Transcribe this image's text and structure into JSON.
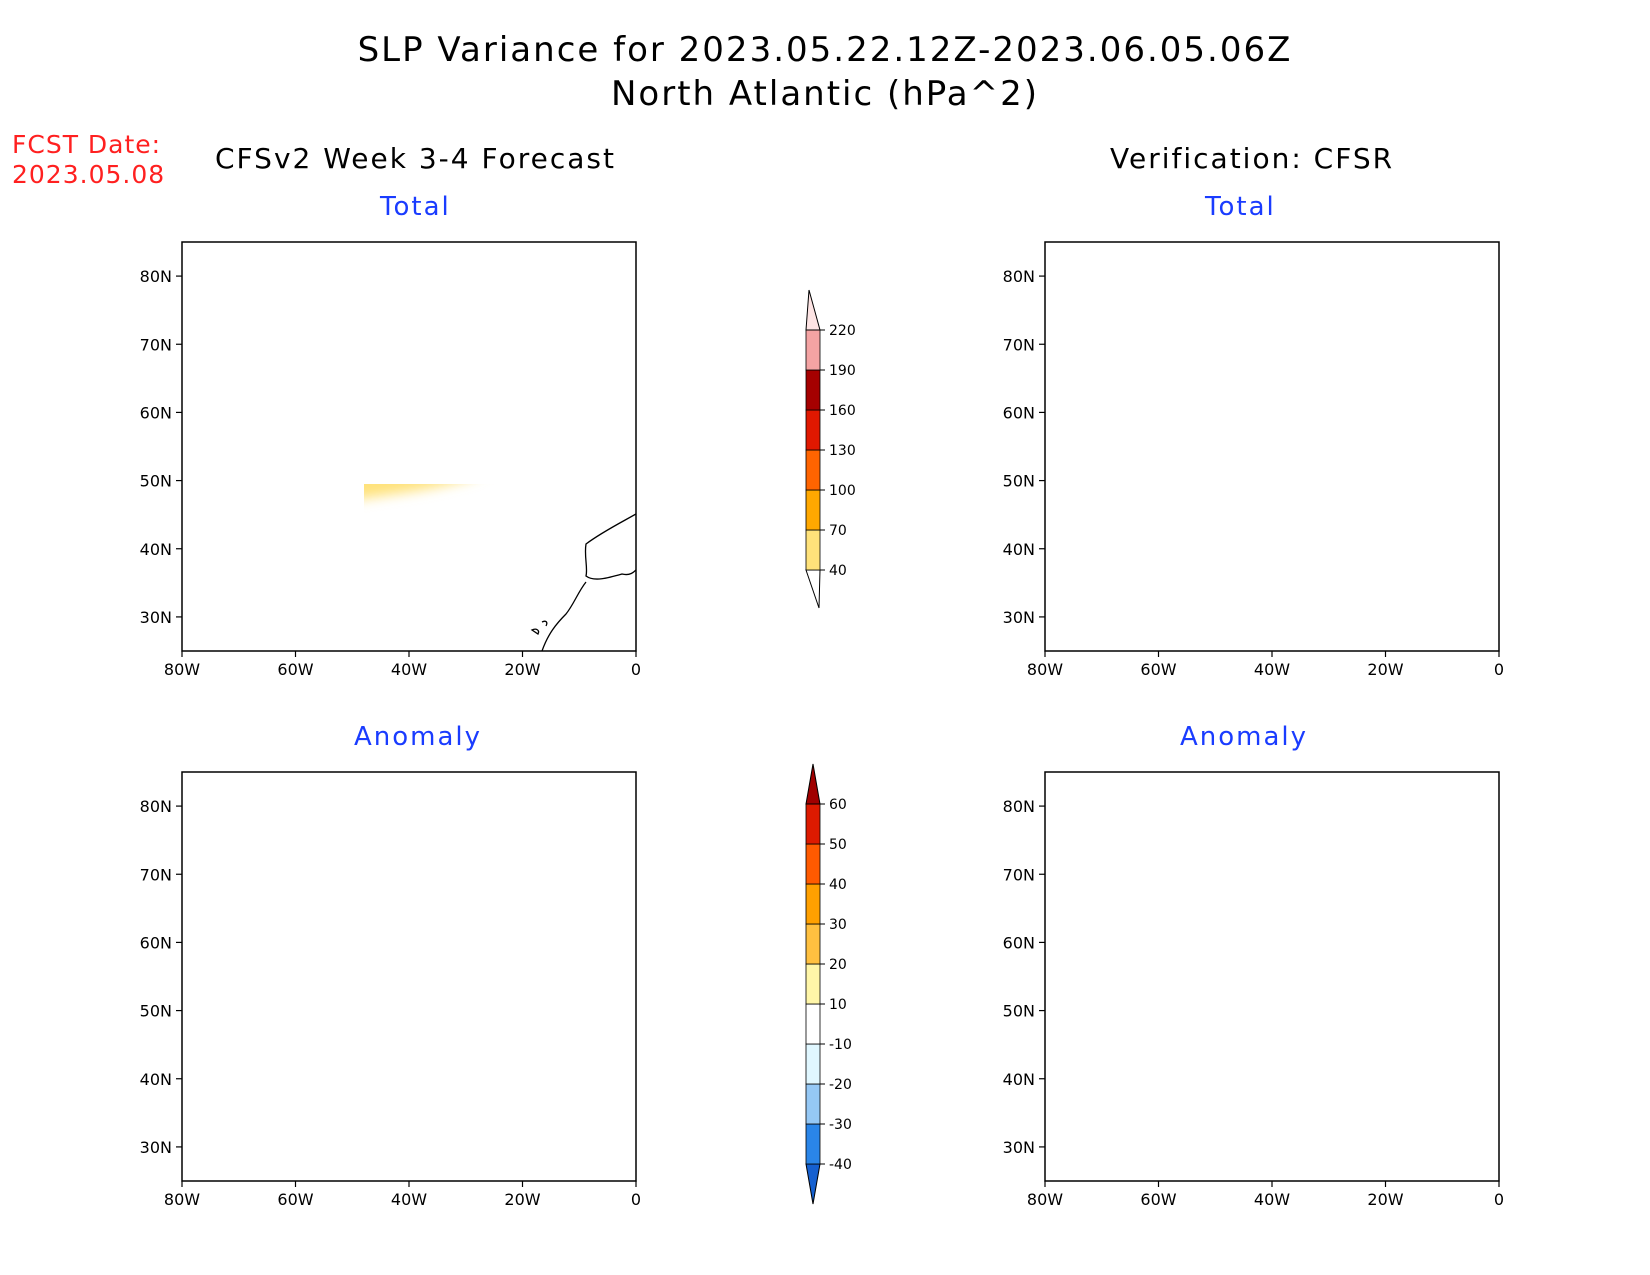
{
  "title": "SLP Variance for 2023.05.22.12Z-2023.06.05.06Z",
  "subtitle": "North Atlantic (hPa^2)",
  "fcst_date": {
    "label": "FCST Date:",
    "value": "2023.05.08"
  },
  "columns": {
    "left": "CFSv2 Week 3-4 Forecast",
    "right": "Verification: CFSR"
  },
  "panels": [
    {
      "id": "fcst-total",
      "title": "Total"
    },
    {
      "id": "cfsr-total",
      "title": "Total"
    },
    {
      "id": "fcst-anom",
      "title": "Anomaly"
    },
    {
      "id": "cfsr-anom",
      "title": "Anomaly"
    }
  ],
  "axes": {
    "lat_ticks": [
      "80N",
      "70N",
      "60N",
      "50N",
      "40N",
      "30N"
    ],
    "lon_ticks": [
      "80W",
      "60W",
      "40W",
      "20W",
      "0"
    ],
    "lat_range": [
      25,
      85
    ],
    "lon_range": [
      -80,
      0
    ]
  },
  "colorbar_total": {
    "levels": [
      "40",
      "70",
      "100",
      "130",
      "160",
      "190",
      "220"
    ],
    "colors": [
      "#ffe27a",
      "#ffa800",
      "#ff6400",
      "#e01800",
      "#a50000",
      "#f4a3a3",
      "#fde4e4"
    ]
  },
  "colorbar_anomaly": {
    "levels": [
      "-40",
      "-30",
      "-20",
      "-10",
      "10",
      "20",
      "30",
      "40",
      "50",
      "60"
    ],
    "colors": [
      "#1560d0",
      "#2a85e8",
      "#95c8f5",
      "#e0f7ff",
      "#ffffff",
      "#fff6a8",
      "#ffc040",
      "#ffa000",
      "#ff5a00",
      "#dd1a00",
      "#a00000"
    ]
  },
  "chart_data": {
    "type": "heatmap",
    "title": "SLP Variance for 2023.05.22.12Z-2023.06.05.06Z",
    "units": "hPa^2",
    "region": "North Atlantic",
    "xlim": [
      -80,
      0
    ],
    "ylim": [
      25,
      85
    ],
    "panels": [
      "CFSv2 Week 3-4 Forecast Total",
      "CFSR Total",
      "CFSv2 Week 3-4 Forecast Anomaly",
      "CFSR Anomaly"
    ]
  }
}
